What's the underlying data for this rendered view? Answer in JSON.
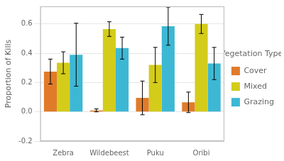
{
  "chart_data": {
    "type": "bar",
    "categories": [
      "Zebra",
      "Wildebeest",
      "Puku",
      "Oribi"
    ],
    "series": [
      {
        "name": "Cover",
        "color": "#E07B2A",
        "values": [
          0.275,
          0.01,
          0.095,
          0.065
        ],
        "errors": [
          0.085,
          0.01,
          0.115,
          0.07
        ]
      },
      {
        "name": "Mixed",
        "color": "#D4CC1A",
        "values": [
          0.335,
          0.565,
          0.32,
          0.6
        ],
        "errors": [
          0.075,
          0.05,
          0.12,
          0.065
        ]
      },
      {
        "name": "Grazing",
        "color": "#3DB8D4",
        "values": [
          0.39,
          0.435,
          0.585,
          0.33
        ],
        "errors": [
          0.215,
          0.075,
          0.13,
          0.11
        ]
      }
    ],
    "ylabel": "Proportion of Kills",
    "legend_title": "Vegetation Type:",
    "legend": "right",
    "ylim": [
      -0.2,
      0.72
    ],
    "yticks": [
      -0.2,
      {
        "value": 0,
        "label": "0.0"
      },
      0.2,
      0.4,
      0.6
    ],
    "grid": true
  }
}
